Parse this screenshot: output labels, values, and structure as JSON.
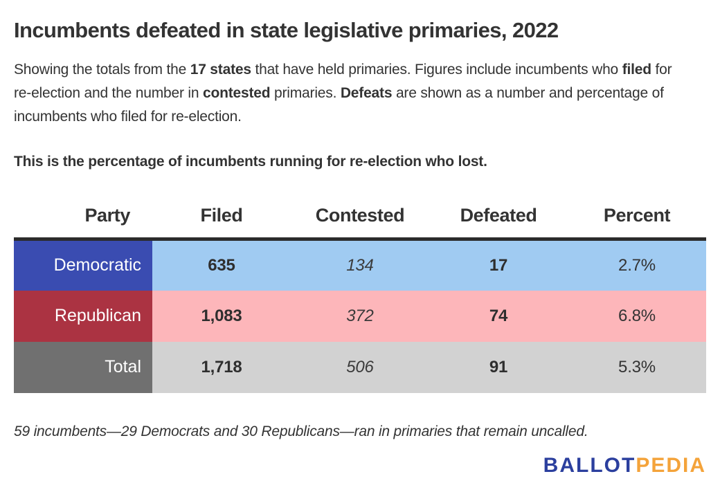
{
  "page": {
    "title": "Incumbents defeated in state legislative primaries, 2022",
    "description_segments": [
      {
        "text": "Showing the totals from the ",
        "bold": false
      },
      {
        "text": "17 states",
        "bold": true
      },
      {
        "text": " that have held primaries. Figures include incumbents who ",
        "bold": false
      },
      {
        "text": "filed",
        "bold": true
      },
      {
        "text": " for re-election and the number in ",
        "bold": false
      },
      {
        "text": "contested",
        "bold": true
      },
      {
        "text": " primaries. ",
        "bold": false
      },
      {
        "text": "Defeats",
        "bold": true
      },
      {
        "text": " are shown as a number and percentage of incumbents who filed for re-election.",
        "bold": false
      }
    ],
    "subtitle": "This is the percentage of incumbents running for re-election who lost.",
    "footnote": "59 incumbents—29 Democrats and 30 Republicans—ran in primaries that remain uncalled."
  },
  "table": {
    "headers": [
      "Party",
      "Filed",
      "Contested",
      "Defeated",
      "Percent"
    ],
    "rows": [
      {
        "party": "Democratic",
        "filed": "635",
        "contested": "134",
        "defeated": "17",
        "percent": "2.7%"
      },
      {
        "party": "Republican",
        "filed": "1,083",
        "contested": "372",
        "defeated": "74",
        "percent": "6.8%"
      },
      {
        "party": "Total",
        "filed": "1,718",
        "contested": "506",
        "defeated": "91",
        "percent": "5.3%"
      }
    ]
  },
  "logo": {
    "ballot": "BALLOT",
    "pedia": "PEDIA"
  },
  "colors": {
    "democratic_label_bg": "#3a4cb1",
    "democratic_row_bg": "#a0cbf2",
    "republican_label_bg": "#ab3342",
    "republican_row_bg": "#fdb6ba",
    "total_label_bg": "#707070",
    "total_row_bg": "#d2d2d2",
    "header_rule": "#2b2b2b",
    "logo_blue": "#2b3f9e",
    "logo_orange": "#f4a33a",
    "text": "#333333"
  },
  "chart_data": {
    "type": "table",
    "title": "Incumbents defeated in state legislative primaries, 2022",
    "columns": [
      "Party",
      "Filed",
      "Contested",
      "Defeated",
      "Percent"
    ],
    "rows": [
      [
        "Democratic",
        635,
        134,
        17,
        "2.7%"
      ],
      [
        "Republican",
        1083,
        372,
        74,
        "6.8%"
      ],
      [
        "Total",
        1718,
        506,
        91,
        "5.3%"
      ]
    ],
    "notes": [
      "Totals from the 17 states that have held primaries",
      "Percent = defeated as share of incumbents who filed for re-election",
      "59 incumbents (29 Democrats, 30 Republicans) ran in primaries that remain uncalled"
    ]
  }
}
